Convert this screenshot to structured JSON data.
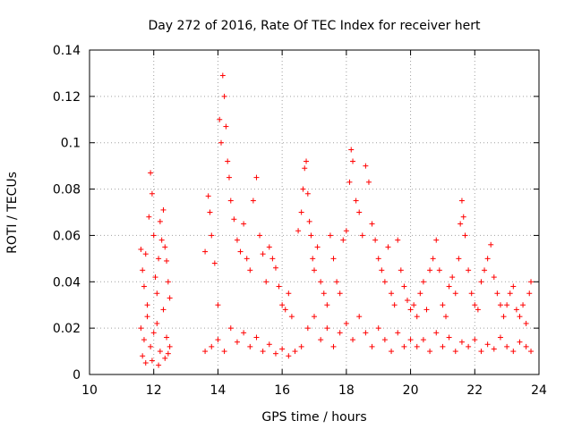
{
  "chart_data": {
    "type": "scatter",
    "title": "Day 272 of 2016, Rate Of TEC Index for receiver hert",
    "xlabel": "GPS time / hours",
    "ylabel": "ROTI / TECUs",
    "xlim": [
      10,
      24
    ],
    "ylim": [
      0,
      0.14
    ],
    "xticks": [
      "10",
      "12",
      "14",
      "16",
      "18",
      "20",
      "22",
      "24"
    ],
    "yticks": [
      "0",
      "0.02",
      "0.04",
      "0.06",
      "0.08",
      "0.1",
      "0.12",
      "0.14"
    ],
    "grid": true,
    "marker": "+",
    "color": "#ff0000",
    "series": [
      {
        "name": "ROTI",
        "points": [
          [
            11.6,
            0.054
          ],
          [
            11.65,
            0.045
          ],
          [
            11.7,
            0.038
          ],
          [
            11.75,
            0.052
          ],
          [
            11.8,
            0.03
          ],
          [
            11.85,
            0.068
          ],
          [
            11.9,
            0.087
          ],
          [
            11.95,
            0.078
          ],
          [
            12.0,
            0.06
          ],
          [
            12.05,
            0.042
          ],
          [
            12.1,
            0.035
          ],
          [
            12.15,
            0.05
          ],
          [
            12.2,
            0.066
          ],
          [
            12.25,
            0.058
          ],
          [
            12.3,
            0.071
          ],
          [
            12.35,
            0.055
          ],
          [
            12.4,
            0.049
          ],
          [
            12.45,
            0.04
          ],
          [
            12.5,
            0.033
          ],
          [
            11.6,
            0.02
          ],
          [
            11.7,
            0.015
          ],
          [
            11.8,
            0.025
          ],
          [
            11.9,
            0.012
          ],
          [
            12.0,
            0.018
          ],
          [
            12.1,
            0.022
          ],
          [
            12.2,
            0.01
          ],
          [
            12.3,
            0.028
          ],
          [
            12.4,
            0.016
          ],
          [
            12.5,
            0.012
          ],
          [
            11.65,
            0.008
          ],
          [
            11.75,
            0.005
          ],
          [
            11.95,
            0.006
          ],
          [
            12.15,
            0.004
          ],
          [
            12.35,
            0.007
          ],
          [
            12.45,
            0.009
          ],
          [
            13.6,
            0.053
          ],
          [
            13.7,
            0.077
          ],
          [
            13.75,
            0.07
          ],
          [
            13.8,
            0.06
          ],
          [
            13.9,
            0.048
          ],
          [
            14.0,
            0.03
          ],
          [
            14.05,
            0.11
          ],
          [
            14.1,
            0.1
          ],
          [
            14.15,
            0.129
          ],
          [
            14.2,
            0.12
          ],
          [
            14.25,
            0.107
          ],
          [
            14.3,
            0.092
          ],
          [
            14.35,
            0.085
          ],
          [
            14.4,
            0.075
          ],
          [
            14.5,
            0.067
          ],
          [
            14.6,
            0.058
          ],
          [
            14.7,
            0.053
          ],
          [
            14.8,
            0.065
          ],
          [
            14.9,
            0.05
          ],
          [
            15.0,
            0.045
          ],
          [
            15.1,
            0.075
          ],
          [
            15.2,
            0.085
          ],
          [
            15.3,
            0.06
          ],
          [
            15.4,
            0.052
          ],
          [
            15.5,
            0.04
          ],
          [
            15.6,
            0.055
          ],
          [
            15.7,
            0.05
          ],
          [
            15.8,
            0.046
          ],
          [
            15.9,
            0.038
          ],
          [
            16.0,
            0.03
          ],
          [
            16.1,
            0.028
          ],
          [
            16.2,
            0.035
          ],
          [
            16.3,
            0.025
          ],
          [
            13.6,
            0.01
          ],
          [
            13.8,
            0.012
          ],
          [
            14.0,
            0.015
          ],
          [
            14.2,
            0.01
          ],
          [
            14.4,
            0.02
          ],
          [
            14.6,
            0.014
          ],
          [
            14.8,
            0.018
          ],
          [
            15.0,
            0.012
          ],
          [
            15.2,
            0.016
          ],
          [
            15.4,
            0.01
          ],
          [
            15.6,
            0.013
          ],
          [
            15.8,
            0.009
          ],
          [
            16.0,
            0.011
          ],
          [
            16.2,
            0.008
          ],
          [
            16.4,
            0.01
          ],
          [
            16.6,
            0.012
          ],
          [
            16.5,
            0.062
          ],
          [
            16.6,
            0.07
          ],
          [
            16.65,
            0.08
          ],
          [
            16.7,
            0.089
          ],
          [
            16.75,
            0.092
          ],
          [
            16.8,
            0.078
          ],
          [
            16.85,
            0.066
          ],
          [
            16.9,
            0.06
          ],
          [
            16.95,
            0.05
          ],
          [
            17.0,
            0.045
          ],
          [
            17.1,
            0.055
          ],
          [
            17.2,
            0.04
          ],
          [
            17.3,
            0.035
          ],
          [
            17.4,
            0.03
          ],
          [
            17.5,
            0.06
          ],
          [
            17.6,
            0.05
          ],
          [
            17.7,
            0.04
          ],
          [
            17.8,
            0.035
          ],
          [
            17.9,
            0.058
          ],
          [
            18.0,
            0.062
          ],
          [
            18.1,
            0.083
          ],
          [
            18.15,
            0.097
          ],
          [
            18.2,
            0.092
          ],
          [
            18.3,
            0.075
          ],
          [
            18.4,
            0.07
          ],
          [
            18.5,
            0.06
          ],
          [
            18.6,
            0.09
          ],
          [
            18.7,
            0.083
          ],
          [
            18.8,
            0.065
          ],
          [
            18.9,
            0.058
          ],
          [
            19.0,
            0.05
          ],
          [
            19.1,
            0.045
          ],
          [
            19.2,
            0.04
          ],
          [
            19.3,
            0.055
          ],
          [
            19.4,
            0.035
          ],
          [
            19.5,
            0.03
          ],
          [
            19.6,
            0.058
          ],
          [
            19.7,
            0.045
          ],
          [
            19.8,
            0.038
          ],
          [
            19.9,
            0.032
          ],
          [
            20.0,
            0.028
          ],
          [
            16.8,
            0.02
          ],
          [
            17.0,
            0.025
          ],
          [
            17.2,
            0.015
          ],
          [
            17.4,
            0.02
          ],
          [
            17.6,
            0.012
          ],
          [
            17.8,
            0.018
          ],
          [
            18.0,
            0.022
          ],
          [
            18.2,
            0.015
          ],
          [
            18.4,
            0.025
          ],
          [
            18.6,
            0.018
          ],
          [
            18.8,
            0.012
          ],
          [
            19.0,
            0.02
          ],
          [
            19.2,
            0.015
          ],
          [
            19.4,
            0.01
          ],
          [
            19.6,
            0.018
          ],
          [
            19.8,
            0.012
          ],
          [
            20.0,
            0.015
          ],
          [
            20.1,
            0.03
          ],
          [
            20.2,
            0.025
          ],
          [
            20.3,
            0.035
          ],
          [
            20.4,
            0.04
          ],
          [
            20.5,
            0.028
          ],
          [
            20.6,
            0.045
          ],
          [
            20.7,
            0.05
          ],
          [
            20.8,
            0.058
          ],
          [
            20.9,
            0.045
          ],
          [
            21.0,
            0.03
          ],
          [
            21.1,
            0.025
          ],
          [
            21.2,
            0.038
          ],
          [
            21.3,
            0.042
          ],
          [
            21.4,
            0.035
          ],
          [
            21.5,
            0.05
          ],
          [
            21.55,
            0.065
          ],
          [
            21.6,
            0.075
          ],
          [
            21.65,
            0.068
          ],
          [
            21.7,
            0.06
          ],
          [
            21.8,
            0.045
          ],
          [
            21.9,
            0.035
          ],
          [
            22.0,
            0.03
          ],
          [
            22.1,
            0.028
          ],
          [
            22.2,
            0.04
          ],
          [
            22.3,
            0.045
          ],
          [
            22.4,
            0.05
          ],
          [
            22.5,
            0.056
          ],
          [
            22.6,
            0.042
          ],
          [
            22.7,
            0.035
          ],
          [
            22.8,
            0.03
          ],
          [
            22.9,
            0.025
          ],
          [
            23.0,
            0.03
          ],
          [
            23.1,
            0.035
          ],
          [
            23.2,
            0.038
          ],
          [
            23.3,
            0.028
          ],
          [
            23.4,
            0.025
          ],
          [
            23.5,
            0.03
          ],
          [
            23.6,
            0.022
          ],
          [
            23.7,
            0.035
          ],
          [
            23.75,
            0.04
          ],
          [
            20.2,
            0.012
          ],
          [
            20.4,
            0.015
          ],
          [
            20.6,
            0.01
          ],
          [
            20.8,
            0.018
          ],
          [
            21.0,
            0.012
          ],
          [
            21.2,
            0.016
          ],
          [
            21.4,
            0.01
          ],
          [
            21.6,
            0.014
          ],
          [
            21.8,
            0.012
          ],
          [
            22.0,
            0.015
          ],
          [
            22.2,
            0.01
          ],
          [
            22.4,
            0.013
          ],
          [
            22.6,
            0.011
          ],
          [
            22.8,
            0.016
          ],
          [
            23.0,
            0.012
          ],
          [
            23.2,
            0.01
          ],
          [
            23.4,
            0.014
          ],
          [
            23.6,
            0.012
          ],
          [
            23.75,
            0.01
          ]
        ]
      }
    ]
  }
}
